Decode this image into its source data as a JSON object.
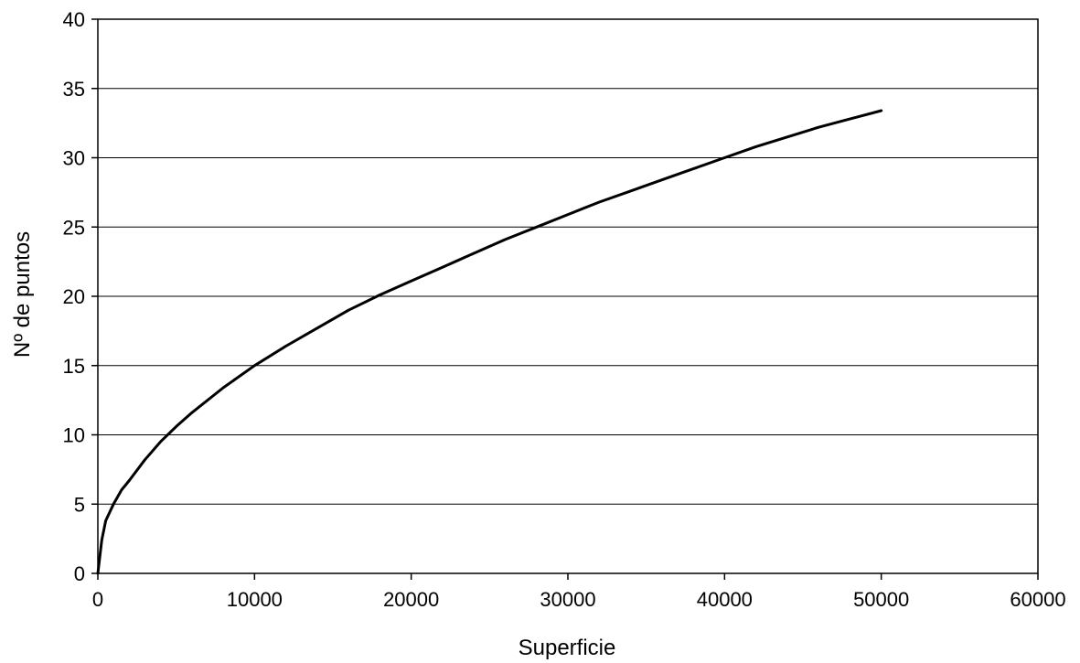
{
  "chart_data": {
    "type": "line",
    "title": "",
    "xlabel": "Superficie",
    "ylabel": "Nº de puntos",
    "xlim": [
      0,
      60000
    ],
    "ylim": [
      0,
      40
    ],
    "xticks": [
      0,
      10000,
      20000,
      30000,
      40000,
      50000,
      60000
    ],
    "yticks": [
      0,
      5,
      10,
      15,
      20,
      25,
      30,
      35,
      40
    ],
    "grid": "horizontal",
    "legend": "none",
    "series": [
      {
        "color": "#000000",
        "x": [
          0,
          250,
          500,
          1000,
          1500,
          2000,
          3000,
          4000,
          5000,
          6000,
          8000,
          10000,
          12000,
          14000,
          16000,
          18000,
          20000,
          22000,
          24000,
          26000,
          28000,
          30000,
          32000,
          34000,
          36000,
          38000,
          40000,
          42000,
          44000,
          46000,
          48000,
          50000
        ],
        "y": [
          0,
          2.4,
          3.8,
          5.0,
          6.0,
          6.7,
          8.2,
          9.5,
          10.6,
          11.6,
          13.4,
          15.0,
          16.4,
          17.7,
          19.0,
          20.1,
          21.1,
          22.1,
          23.1,
          24.1,
          25.0,
          25.9,
          26.8,
          27.6,
          28.4,
          29.2,
          30.0,
          30.8,
          31.5,
          32.2,
          32.8,
          33.4
        ]
      }
    ]
  }
}
